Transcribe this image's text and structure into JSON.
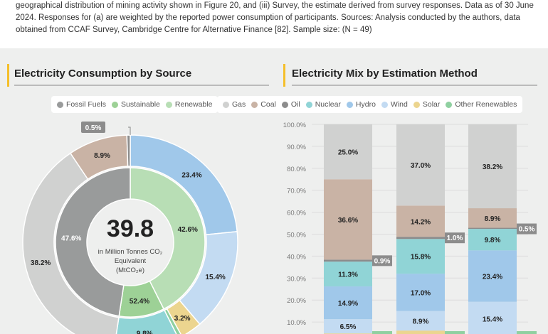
{
  "caption": "geographical distribution of mining activity shown in Figure 20, and (iii) Survey, the estimate derived from survey responses. Data as of 30 June 2024. Responses for (a) are weighted by the reported power consumption of participants. Sources: Analysis conducted by the authors, data obtained from CCAF Survey, Cambridge Centre for Alternative Finance [82]. Sample size: (N = 49)",
  "colors": {
    "Gas": "#d0d1d0",
    "Coal": "#c9b3a5",
    "Oil": "#8c8c8c",
    "Nuclear": "#90d4d6",
    "Hydro": "#a0c8ea",
    "Wind": "#c3dbf2",
    "Solar": "#ecd58f",
    "Other Renewables": "#8fd0a0",
    "Fossil Fuels": "#999b9b",
    "Sustainable": "#9dd196",
    "Renewable": "#b8deb5"
  },
  "chart_data": [
    {
      "type": "pie",
      "variant": "nested-donut",
      "title": "Electricity Consumption by Source",
      "center_value": "39.8",
      "center_label_1": "in Million Tonnes CO₂",
      "center_label_2": "Equivalent",
      "center_label_3": "(MtCO₂e)",
      "legend": [
        "Fossil Fuels",
        "Sustainable",
        "Renewable"
      ],
      "legend_position": "top",
      "inner": [
        {
          "name": "Renewable",
          "value": 42.6,
          "label": "42.6%"
        },
        {
          "name": "Sustainable",
          "value": 9.8,
          "label": "52.4%"
        },
        {
          "name": "Fossil Fuels",
          "value": 47.6,
          "label": "47.6%"
        }
      ],
      "outer": [
        {
          "name": "Hydro",
          "value": 23.4,
          "label": "23.4%"
        },
        {
          "name": "Wind",
          "value": 15.4,
          "label": "15.4%"
        },
        {
          "name": "Solar",
          "value": 3.2,
          "label": "3.2%"
        },
        {
          "name": "Other Renewables",
          "value": 0.6,
          "label": ""
        },
        {
          "name": "Nuclear",
          "value": 9.8,
          "label": "9.8%"
        },
        {
          "name": "Gas",
          "value": 38.2,
          "label": "38.2%"
        },
        {
          "name": "Coal",
          "value": 8.9,
          "label": "8.9%"
        },
        {
          "name": "Oil",
          "value": 0.5,
          "label": "0.5%"
        }
      ]
    },
    {
      "type": "bar",
      "variant": "stacked-100",
      "title": "Electricity Mix by Estimation Method",
      "legend": [
        "Gas",
        "Coal",
        "Oil",
        "Nuclear",
        "Hydro",
        "Wind",
        "Solar",
        "Other Renewables"
      ],
      "legend_position": "top",
      "ylim": [
        0,
        100
      ],
      "yticks": [
        "10.0%",
        "20.0%",
        "30.0%",
        "40.0%",
        "50.0%",
        "60.0%",
        "70.0%",
        "80.0%",
        "90.0%",
        "100.0%"
      ],
      "grid": true,
      "series": [
        {
          "name": "Other Renewables",
          "values": [
            null,
            null,
            null
          ]
        },
        {
          "name": "Solar",
          "values": [
            null,
            null,
            null
          ]
        },
        {
          "name": "Wind",
          "values": [
            6.5,
            8.9,
            15.4
          ]
        },
        {
          "name": "Hydro",
          "values": [
            14.9,
            17.0,
            23.4
          ]
        },
        {
          "name": "Nuclear",
          "values": [
            11.3,
            15.8,
            9.8
          ]
        },
        {
          "name": "Oil",
          "values": [
            0.9,
            1.0,
            0.5
          ]
        },
        {
          "name": "Coal",
          "values": [
            36.6,
            14.2,
            8.9
          ]
        },
        {
          "name": "Gas",
          "values": [
            25.0,
            37.0,
            38.2
          ]
        }
      ]
    }
  ]
}
